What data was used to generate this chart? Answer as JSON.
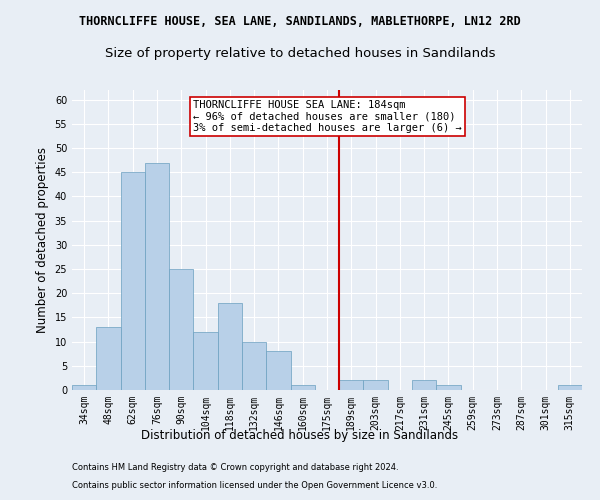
{
  "title1": "THORNCLIFFE HOUSE, SEA LANE, SANDILANDS, MABLETHORPE, LN12 2RD",
  "title2": "Size of property relative to detached houses in Sandilands",
  "xlabel": "Distribution of detached houses by size in Sandilands",
  "ylabel": "Number of detached properties",
  "footer1": "Contains HM Land Registry data © Crown copyright and database right 2024.",
  "footer2": "Contains public sector information licensed under the Open Government Licence v3.0.",
  "bin_labels": [
    "34sqm",
    "48sqm",
    "62sqm",
    "76sqm",
    "90sqm",
    "104sqm",
    "118sqm",
    "132sqm",
    "146sqm",
    "160sqm",
    "175sqm",
    "189sqm",
    "203sqm",
    "217sqm",
    "231sqm",
    "245sqm",
    "259sqm",
    "273sqm",
    "287sqm",
    "301sqm",
    "315sqm"
  ],
  "bar_values": [
    1,
    13,
    45,
    47,
    25,
    12,
    18,
    10,
    8,
    1,
    0,
    2,
    2,
    0,
    2,
    1,
    0,
    0,
    0,
    0,
    1
  ],
  "bar_color": "#b8d0e8",
  "bar_edge_color": "#6a9fc0",
  "vline_x_index": 10.5,
  "vline_color": "#cc0000",
  "annotation_box_text": "THORNCLIFFE HOUSE SEA LANE: 184sqm\n← 96% of detached houses are smaller (180)\n3% of semi-detached houses are larger (6) →",
  "ylim": [
    0,
    62
  ],
  "yticks": [
    0,
    5,
    10,
    15,
    20,
    25,
    30,
    35,
    40,
    45,
    50,
    55,
    60
  ],
  "background_color": "#e8eef5",
  "plot_background_color": "#e8eef5",
  "grid_color": "#ffffff",
  "title1_fontsize": 8.5,
  "title2_fontsize": 9.5,
  "tick_fontsize": 7,
  "axis_label_fontsize": 8.5,
  "annotation_fontsize": 7.5,
  "footer_fontsize": 6.0
}
